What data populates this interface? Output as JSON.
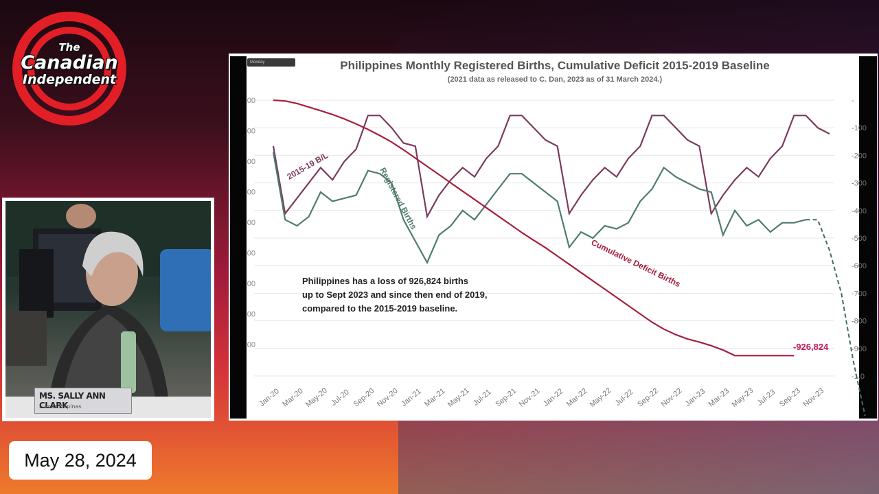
{
  "logo": {
    "line1": "The",
    "line2": "Canadian",
    "line3": "Independent"
  },
  "webcam": {
    "nameplate_name": "MS. SALLY ANN CLARK",
    "nameplate_sub": "Lumas Pilipinas"
  },
  "slide_tab": "Monday",
  "date": "May 28, 2024",
  "colors": {
    "registered": "#4f7b6f",
    "baseline": "#7b3a5c",
    "deficit": "#a81e3c",
    "projection": "#3f6e5e"
  },
  "chart_data": {
    "type": "line",
    "title": "Philippines Monthly Registered Births, Cumulative Deficit 2015-2019 Baseline",
    "subtitle": "(2021 data as released to C. Dan, 2023 as of 31 March 2024.)",
    "x_tick_labels": [
      "Jan-20",
      "Mar-20",
      "May-20",
      "Jul-20",
      "Sep-20",
      "Nov-20",
      "Jan-21",
      "Mar-21",
      "May-21",
      "Jul-21",
      "Sep-21",
      "Nov-21",
      "Jan-22",
      "Mar-22",
      "May-22",
      "Jul-22",
      "Sep-22",
      "Nov-22",
      "Jan-23",
      "Mar-23",
      "May-23",
      "Jul-23",
      "Sep-23",
      "Nov-23"
    ],
    "left_y_ticks": [
      "00",
      "00",
      "00",
      "00",
      "00",
      "00",
      "00",
      "00",
      "00"
    ],
    "right_y_ticks": [
      "-",
      "-100",
      "-200",
      "-300",
      "-400",
      "-500",
      "-600",
      "-700",
      "-800",
      "-900",
      "-1,0"
    ],
    "right_ylim": [
      0,
      -1000
    ],
    "series": [
      {
        "name": "2015-19 B/L",
        "values": [
          130000,
          108000,
          113000,
          118000,
          123000,
          119000,
          125000,
          129000,
          140000,
          140000,
          136000,
          131000,
          130000,
          107000,
          114000,
          119000,
          123000,
          120000,
          126000,
          130000,
          140000,
          140000,
          136000,
          132000,
          130000,
          108000,
          114000,
          119000,
          123000,
          120000,
          126000,
          130000,
          140000,
          140000,
          136000,
          132000,
          130000,
          108000,
          114000,
          119000,
          123000,
          120000,
          126000,
          130000,
          140000,
          140000,
          136000,
          134000
        ]
      },
      {
        "name": "Registered Births",
        "values": [
          128000,
          106000,
          104000,
          107000,
          115000,
          112000,
          113000,
          114000,
          122000,
          121000,
          118000,
          106000,
          99000,
          92000,
          101000,
          104000,
          109000,
          106000,
          111000,
          116000,
          121000,
          121000,
          118000,
          115000,
          112000,
          97000,
          102000,
          100000,
          104000,
          103000,
          105000,
          112000,
          116000,
          123000,
          120000,
          118000,
          116000,
          115000,
          101000,
          109000,
          104000,
          106000,
          102000,
          105000,
          105000,
          106000
        ]
      },
      {
        "name": "Cumulative Deficit Births",
        "values": [
          0,
          -3,
          -12,
          -25,
          -38,
          -52,
          -68,
          -86,
          -106,
          -128,
          -152,
          -180,
          -210,
          -240,
          -270,
          -300,
          -330,
          -360,
          -390,
          -420,
          -450,
          -480,
          -508,
          -535,
          -565,
          -595,
          -625,
          -655,
          -685,
          -715,
          -745,
          -775,
          -805,
          -830,
          -850,
          -866,
          -877,
          -890,
          -906,
          -926,
          -926,
          -926,
          -926,
          -926,
          -926
        ]
      }
    ],
    "projection_values": [
      106000,
      96000,
      82000,
      60000,
      42000
    ],
    "end_label": "-926,824",
    "annotation": "Philippines has a loss of 926,824 births up to Sept 2023 and since then end of 2019, compared to the 2015-2019 baseline.",
    "annotation_lines": [
      "Philippines has a loss of 926,824 births",
      "up to Sept 2023 and since then end of 2019,",
      "compared to the 2015-2019 baseline."
    ],
    "grid": true
  }
}
